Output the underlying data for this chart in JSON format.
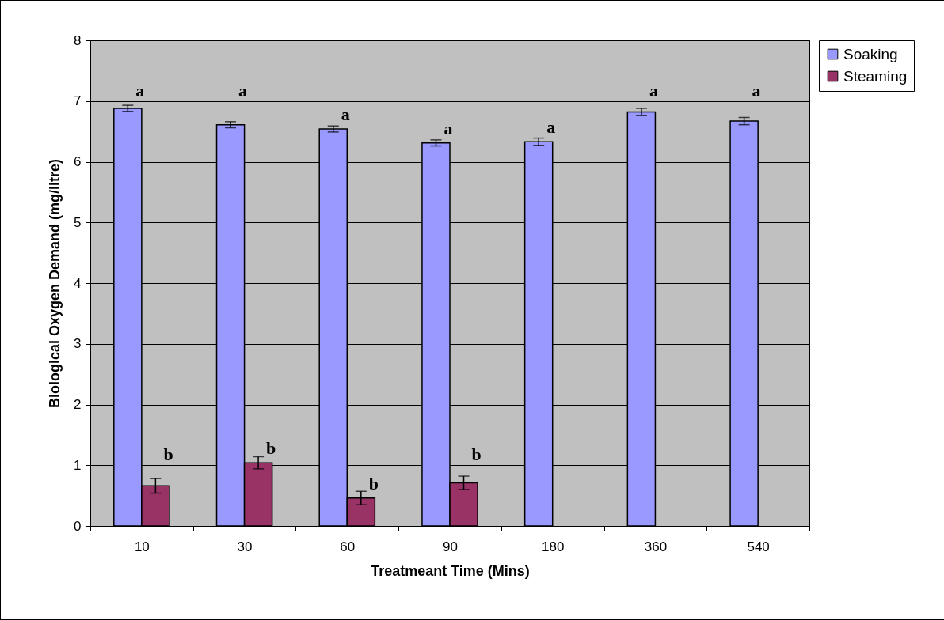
{
  "chart_data": {
    "type": "bar",
    "xlabel": "Treatmeant Time (Mins)",
    "ylabel": "Biological Oxygen Demand (mg/litre)",
    "categories": [
      "10",
      "30",
      "60",
      "90",
      "180",
      "360",
      "540"
    ],
    "series": [
      {
        "name": "Soaking",
        "color": "#9999ff",
        "values": [
          6.88,
          6.61,
          6.54,
          6.31,
          6.33,
          6.82,
          6.67
        ],
        "errors": [
          0.05,
          0.05,
          0.05,
          0.05,
          0.06,
          0.06,
          0.06
        ]
      },
      {
        "name": "Steaming",
        "color": "#993366",
        "values": [
          0.66,
          1.04,
          0.46,
          0.71,
          null,
          null,
          null
        ],
        "errors": [
          0.12,
          0.1,
          0.11,
          0.11,
          null,
          null,
          null
        ]
      }
    ],
    "ylim": [
      0,
      8
    ],
    "yticks": [
      0,
      1,
      2,
      3,
      4,
      5,
      6,
      7,
      8
    ],
    "grid": "y",
    "legend": "right",
    "annotations": [
      {
        "text": "a",
        "x": "10",
        "y": 6.88
      },
      {
        "text": "a",
        "x": "30",
        "y": 6.61
      },
      {
        "text": "a",
        "x": "60",
        "y": 6.54
      },
      {
        "text": "a",
        "x": "90",
        "y": 6.31
      },
      {
        "text": "a",
        "x": "180",
        "y": 6.33
      },
      {
        "text": "a",
        "x": "360",
        "y": 6.82
      },
      {
        "text": "a",
        "x": "540",
        "y": 6.67
      },
      {
        "text": "b",
        "x": "10",
        "y": 0.66
      },
      {
        "text": "b",
        "x": "30",
        "y": 1.04
      },
      {
        "text": "b",
        "x": "60",
        "y": 0.46
      },
      {
        "text": "b",
        "x": "90",
        "y": 0.71
      }
    ]
  }
}
